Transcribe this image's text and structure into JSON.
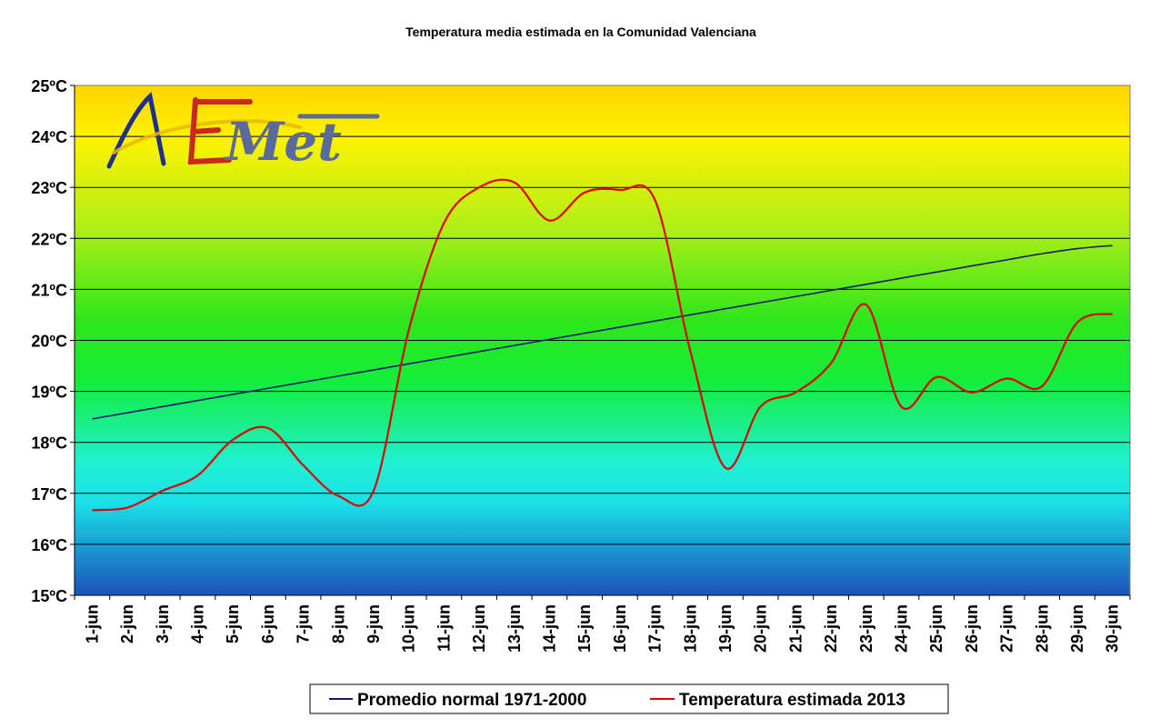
{
  "chart_data": {
    "type": "line",
    "title": "Temperatura media estimada en la Comunidad Valenciana",
    "xlabel": "",
    "ylabel": "",
    "ylim": [
      15,
      25
    ],
    "y_ticks": [
      "15ºC",
      "16ºC",
      "17ºC",
      "18ºC",
      "19ºC",
      "20ºC",
      "21ºC",
      "22ºC",
      "23ºC",
      "24ºC",
      "25ºC"
    ],
    "categories": [
      "1-jun",
      "2-jun",
      "3-jun",
      "4-jun",
      "5-jun",
      "6-jun",
      "7-jun",
      "8-jun",
      "9-jun",
      "10-jun",
      "11-jun",
      "12-jun",
      "13-jun",
      "14-jun",
      "15-jun",
      "16-jun",
      "17-jun",
      "18-jun",
      "19-jun",
      "20-jun",
      "21-jun",
      "22-jun",
      "23-jun",
      "24-jun",
      "25-jun",
      "26-jun",
      "27-jun",
      "28-jun",
      "29-jun",
      "30-jun"
    ],
    "grid": true,
    "legend_position": "bottom",
    "background": "vertical gradient blue-cyan-green-yellow-orange",
    "series": [
      {
        "name": "Promedio normal 1971-2000",
        "color": "#1a1a6e",
        "values": [
          18.46,
          18.58,
          18.7,
          18.82,
          18.94,
          19.06,
          19.18,
          19.3,
          19.42,
          19.54,
          19.66,
          19.78,
          19.9,
          20.02,
          20.14,
          20.26,
          20.38,
          20.5,
          20.62,
          20.74,
          20.86,
          20.98,
          21.1,
          21.22,
          21.34,
          21.46,
          21.58,
          21.7,
          21.8,
          21.86
        ]
      },
      {
        "name": "Temperatura estimada 2013",
        "color": "#e00000",
        "values": [
          16.67,
          16.72,
          17.05,
          17.35,
          18.05,
          18.28,
          17.55,
          16.95,
          17.05,
          20.2,
          22.3,
          23.0,
          23.1,
          22.35,
          22.9,
          22.95,
          22.75,
          19.8,
          17.5,
          18.7,
          18.98,
          19.55,
          20.7,
          18.7,
          19.28,
          18.98,
          19.25,
          19.1,
          20.35,
          20.52
        ]
      }
    ]
  },
  "logo": {
    "text": "AEMet",
    "colors": {
      "blue": "#1f2f8a",
      "red": "#c8281e",
      "gold": "#e8a800",
      "slate": "#5a6a9a"
    }
  }
}
